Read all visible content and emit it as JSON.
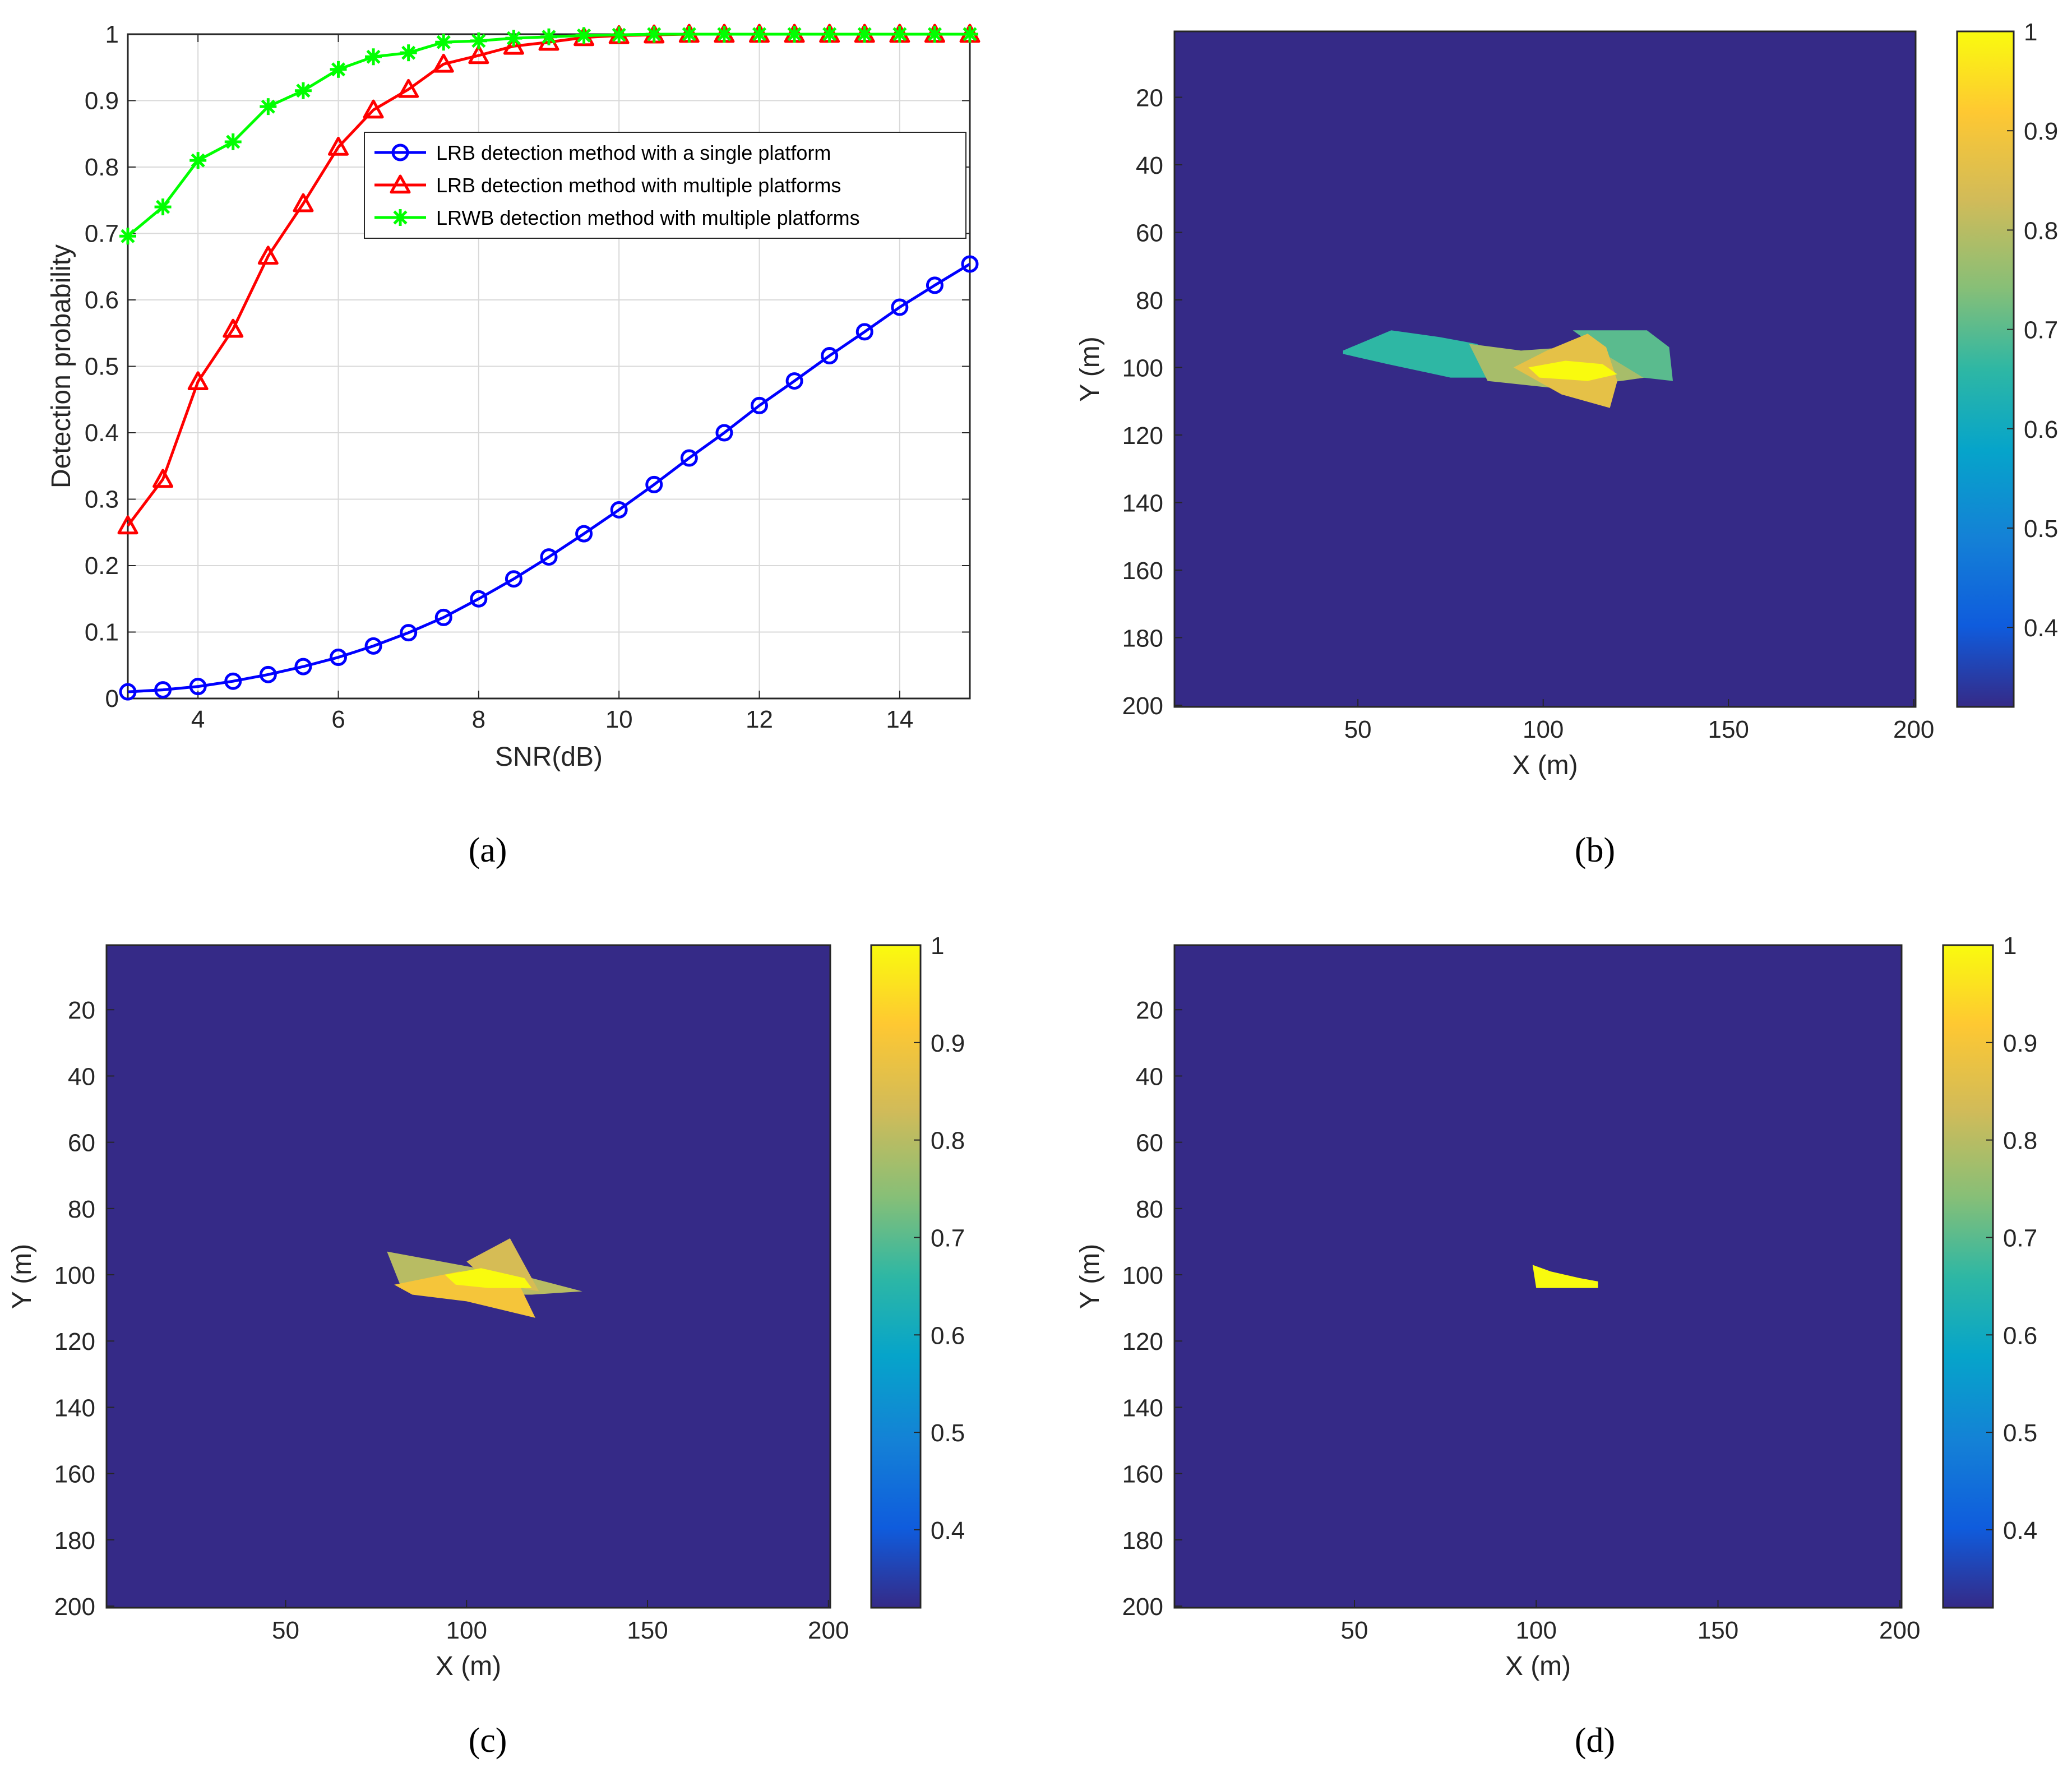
{
  "colors": {
    "single": "#0000ff",
    "multi": "#ff0000",
    "lrwb": "#00ff00",
    "heat_bg": "#352a87",
    "grid": "#d9d9d9",
    "axis": "#262626"
  },
  "chart_data": [
    {
      "type": "line",
      "panel_label": "a",
      "xlabel": "SNR(dB)",
      "ylabel": "Detection probability",
      "xlim": [
        3,
        15
      ],
      "ylim": [
        0,
        1
      ],
      "grid": true,
      "legend_position": "top-right",
      "x_ticks": [
        "4",
        "6",
        "8",
        "10",
        "12",
        "14"
      ],
      "y_ticks": [
        "0",
        "0.1",
        "0.2",
        "0.3",
        "0.4",
        "0.5",
        "0.6",
        "0.7",
        "0.8",
        "0.9",
        "1"
      ],
      "x": [
        3,
        3.5,
        4,
        4.5,
        5,
        5.5,
        6,
        6.5,
        7,
        7.5,
        8,
        8.5,
        9,
        9.5,
        10,
        10.5,
        11,
        11.5,
        12,
        12.5,
        13,
        13.5,
        14,
        14.5,
        15
      ],
      "series": [
        {
          "name": "LRB detection method with a single platform",
          "marker": "circle",
          "values": [
            0.01,
            0.013,
            0.018,
            0.026,
            0.036,
            0.048,
            0.062,
            0.079,
            0.099,
            0.122,
            0.15,
            0.18,
            0.213,
            0.248,
            0.284,
            0.322,
            0.362,
            0.4,
            0.441,
            0.478,
            0.516,
            0.552,
            0.589,
            0.622,
            0.654
          ]
        },
        {
          "name": "LRB detection method with multiple platforms",
          "marker": "triangle",
          "values": [
            0.26,
            0.33,
            0.477,
            0.556,
            0.666,
            0.745,
            0.83,
            0.886,
            0.917,
            0.955,
            0.968,
            0.982,
            0.988,
            0.995,
            0.998,
            0.999,
            1.0,
            1.0,
            1.0,
            1.0,
            1.0,
            1.0,
            1.0,
            1.0,
            1.0
          ]
        },
        {
          "name": "LRWB detection method with multiple platforms",
          "marker": "asterisk",
          "values": [
            0.696,
            0.74,
            0.81,
            0.838,
            0.891,
            0.915,
            0.947,
            0.966,
            0.972,
            0.988,
            0.99,
            0.994,
            0.996,
            0.998,
            0.999,
            1.0,
            1.0,
            1.0,
            1.0,
            1.0,
            1.0,
            1.0,
            1.0,
            1.0,
            1.0
          ]
        }
      ]
    },
    {
      "type": "heatmap",
      "panel_label": "b",
      "xlabel": "X (m)",
      "ylabel": "Y (m)",
      "xlim": [
        1,
        200
      ],
      "ylim": [
        200,
        1
      ],
      "x_ticks": [
        "50",
        "100",
        "150",
        "200"
      ],
      "y_ticks": [
        "20",
        "40",
        "60",
        "80",
        "100",
        "120",
        "140",
        "160",
        "180",
        "200"
      ],
      "colorbar_range": [
        0.32,
        1
      ],
      "colorbar_ticks": [
        "0.4",
        "0.5",
        "0.6",
        "0.7",
        "0.8",
        "0.9",
        "1"
      ],
      "background_value": 0.32,
      "regions": [
        {
          "value": 0.66,
          "points": [
            [
              46,
              95
            ],
            [
              59,
              89
            ],
            [
              72,
              91
            ],
            [
              82,
              93
            ],
            [
              90,
              97
            ],
            [
              96,
              100
            ],
            [
              92,
              103
            ],
            [
              75,
              103
            ],
            [
              58,
              99
            ],
            [
              46,
              96
            ]
          ]
        },
        {
          "value": 0.78,
          "points": [
            [
              80,
              93
            ],
            [
              94,
              95
            ],
            [
              107,
              94
            ],
            [
              118,
              95
            ],
            [
              125,
              99
            ],
            [
              134,
              102
            ],
            [
              121,
              104
            ],
            [
              102,
              106
            ],
            [
              85,
              104
            ]
          ]
        },
        {
          "value": 0.7,
          "points": [
            [
              108,
              89
            ],
            [
              128,
              89
            ],
            [
              134,
              94
            ],
            [
              135,
              104
            ],
            [
              127,
              103
            ],
            [
              118,
              97
            ]
          ]
        },
        {
          "value": 0.87,
          "points": [
            [
              92,
              100
            ],
            [
              101,
              95
            ],
            [
              112,
              90
            ],
            [
              117,
              94
            ],
            [
              120,
              104
            ],
            [
              118,
              112
            ],
            [
              105,
              108
            ]
          ]
        },
        {
          "value": 1.0,
          "points": [
            [
              96,
              100
            ],
            [
              106,
              98
            ],
            [
              116,
              99
            ],
            [
              120,
              102
            ],
            [
              112,
              104
            ],
            [
              99,
              103
            ]
          ]
        }
      ]
    },
    {
      "type": "heatmap",
      "panel_label": "c",
      "xlabel": "X (m)",
      "ylabel": "Y (m)",
      "xlim": [
        1,
        200
      ],
      "ylim": [
        200,
        1
      ],
      "x_ticks": [
        "50",
        "100",
        "150",
        "200"
      ],
      "y_ticks": [
        "20",
        "40",
        "60",
        "80",
        "100",
        "120",
        "140",
        "160",
        "180",
        "200"
      ],
      "colorbar_range": [
        0.32,
        1
      ],
      "colorbar_ticks": [
        "0.4",
        "0.5",
        "0.6",
        "0.7",
        "0.8",
        "0.9",
        "1"
      ],
      "background_value": 0.32,
      "regions": [
        {
          "value": 0.8,
          "points": [
            [
              78,
              93
            ],
            [
              98,
              97
            ],
            [
              118,
              101
            ],
            [
              132,
              105
            ],
            [
              118,
              106
            ],
            [
              100,
              106
            ],
            [
              82,
              104
            ]
          ]
        },
        {
          "value": 0.84,
          "points": [
            [
              100,
              96
            ],
            [
              112,
              89
            ],
            [
              117,
              99
            ],
            [
              120,
              105
            ],
            [
              106,
              102
            ]
          ]
        },
        {
          "value": 0.9,
          "points": [
            [
              80,
              103
            ],
            [
              98,
              99
            ],
            [
              115,
              104
            ],
            [
              119,
              113
            ],
            [
              100,
              108
            ],
            [
              85,
              106
            ]
          ]
        },
        {
          "value": 1.0,
          "points": [
            [
              94,
              100
            ],
            [
              104,
              98
            ],
            [
              116,
              101
            ],
            [
              118,
              104
            ],
            [
              106,
              104
            ],
            [
              97,
              103
            ]
          ]
        }
      ]
    },
    {
      "type": "heatmap",
      "panel_label": "d",
      "xlabel": "X (m)",
      "ylabel": "Y (m)",
      "xlim": [
        1,
        200
      ],
      "ylim": [
        200,
        1
      ],
      "x_ticks": [
        "50",
        "100",
        "150",
        "200"
      ],
      "y_ticks": [
        "20",
        "40",
        "60",
        "80",
        "100",
        "120",
        "140",
        "160",
        "180",
        "200"
      ],
      "colorbar_range": [
        0.32,
        1
      ],
      "colorbar_ticks": [
        "0.4",
        "0.5",
        "0.6",
        "0.7",
        "0.8",
        "0.9",
        "1"
      ],
      "background_value": 0.32,
      "regions": [
        {
          "value": 1.0,
          "points": [
            [
              99,
              97
            ],
            [
              104,
              99
            ],
            [
              112,
              101
            ],
            [
              117,
              102
            ],
            [
              117,
              104
            ],
            [
              105,
              104
            ],
            [
              100,
              104
            ]
          ]
        }
      ]
    }
  ]
}
